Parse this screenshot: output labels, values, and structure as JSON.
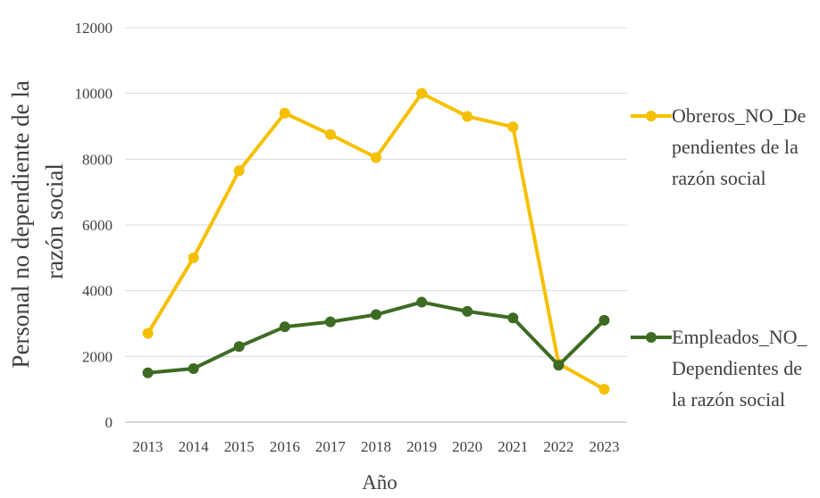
{
  "chart_data": {
    "type": "line",
    "title": "",
    "xlabel": "Año",
    "ylabel_lines": [
      "Personal no dependiente de la",
      "razón social"
    ],
    "x": [
      "2013",
      "2014",
      "2015",
      "2016",
      "2017",
      "2018",
      "2019",
      "2020",
      "2021",
      "2022",
      "2023"
    ],
    "ylim": [
      0,
      12000
    ],
    "yticks": [
      "0",
      "2000",
      "4000",
      "6000",
      "8000",
      "10000",
      "12000"
    ],
    "grid": "horizontal",
    "legend_position": "right",
    "series": [
      {
        "name_lines": [
          "Obreros_NO_De",
          "pendientes de la",
          "razón social"
        ],
        "color": "#F5C000",
        "values": [
          2700,
          5000,
          7650,
          9400,
          8750,
          8050,
          10000,
          9300,
          8980,
          1780,
          1000
        ]
      },
      {
        "name_lines": [
          "Empleados_NO_",
          "Dependientes de",
          "la razón social"
        ],
        "color": "#3D6B23",
        "values": [
          1500,
          1630,
          2300,
          2900,
          3050,
          3270,
          3650,
          3370,
          3170,
          1730,
          3100
        ]
      }
    ]
  }
}
